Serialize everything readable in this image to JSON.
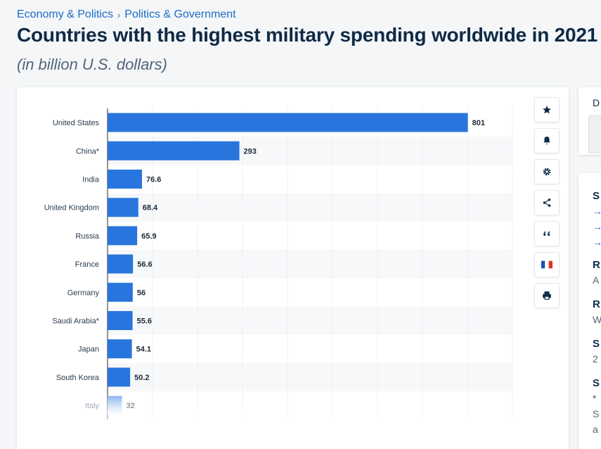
{
  "breadcrumb": {
    "items": [
      "Economy & Politics",
      "Politics & Government"
    ],
    "separator": "›"
  },
  "page": {
    "title": "Countries with the highest military spending worldwide in 2021",
    "subtitle": "(in billion U.S. dollars)"
  },
  "toolbar": {
    "buttons": [
      {
        "name": "favorite",
        "icon": "star-icon"
      },
      {
        "name": "notification",
        "icon": "bell-icon"
      },
      {
        "name": "settings",
        "icon": "gear-icon"
      },
      {
        "name": "share",
        "icon": "share-icon"
      },
      {
        "name": "cite",
        "icon": "quote-icon"
      },
      {
        "name": "language",
        "icon": "french-flag-icon"
      },
      {
        "name": "print",
        "icon": "printer-icon"
      }
    ]
  },
  "sidebar": {
    "top_char": "D",
    "chars": [
      "S",
      "→",
      "→",
      "→",
      "R",
      "A",
      "R",
      "W",
      "S",
      "2",
      "S",
      "*",
      "S",
      "a"
    ]
  },
  "colors": {
    "bar": "#2876dd",
    "bar_faded": "#8db5ee",
    "text": "#0f2a46",
    "link": "#1b6cc6"
  },
  "chart_data": {
    "type": "bar",
    "orientation": "horizontal",
    "title": "Countries with the highest military spending worldwide in 2021",
    "subtitle": "(in billion U.S. dollars)",
    "categories": [
      "United States",
      "China*",
      "India",
      "United Kingdom",
      "Russia",
      "France",
      "Germany",
      "Saudi Arabia*",
      "Japan",
      "South Korea",
      "Italy"
    ],
    "values": [
      801,
      293,
      76.6,
      68.4,
      65.9,
      56.6,
      56,
      55.6,
      54.1,
      50.2,
      32
    ],
    "value_labels": [
      "801",
      "293",
      "76.6",
      "68.4",
      "65.9",
      "56.6",
      "56",
      "55.6",
      "54.1",
      "50.2",
      "32"
    ],
    "xlim": [
      0,
      900
    ],
    "grid": true
  }
}
